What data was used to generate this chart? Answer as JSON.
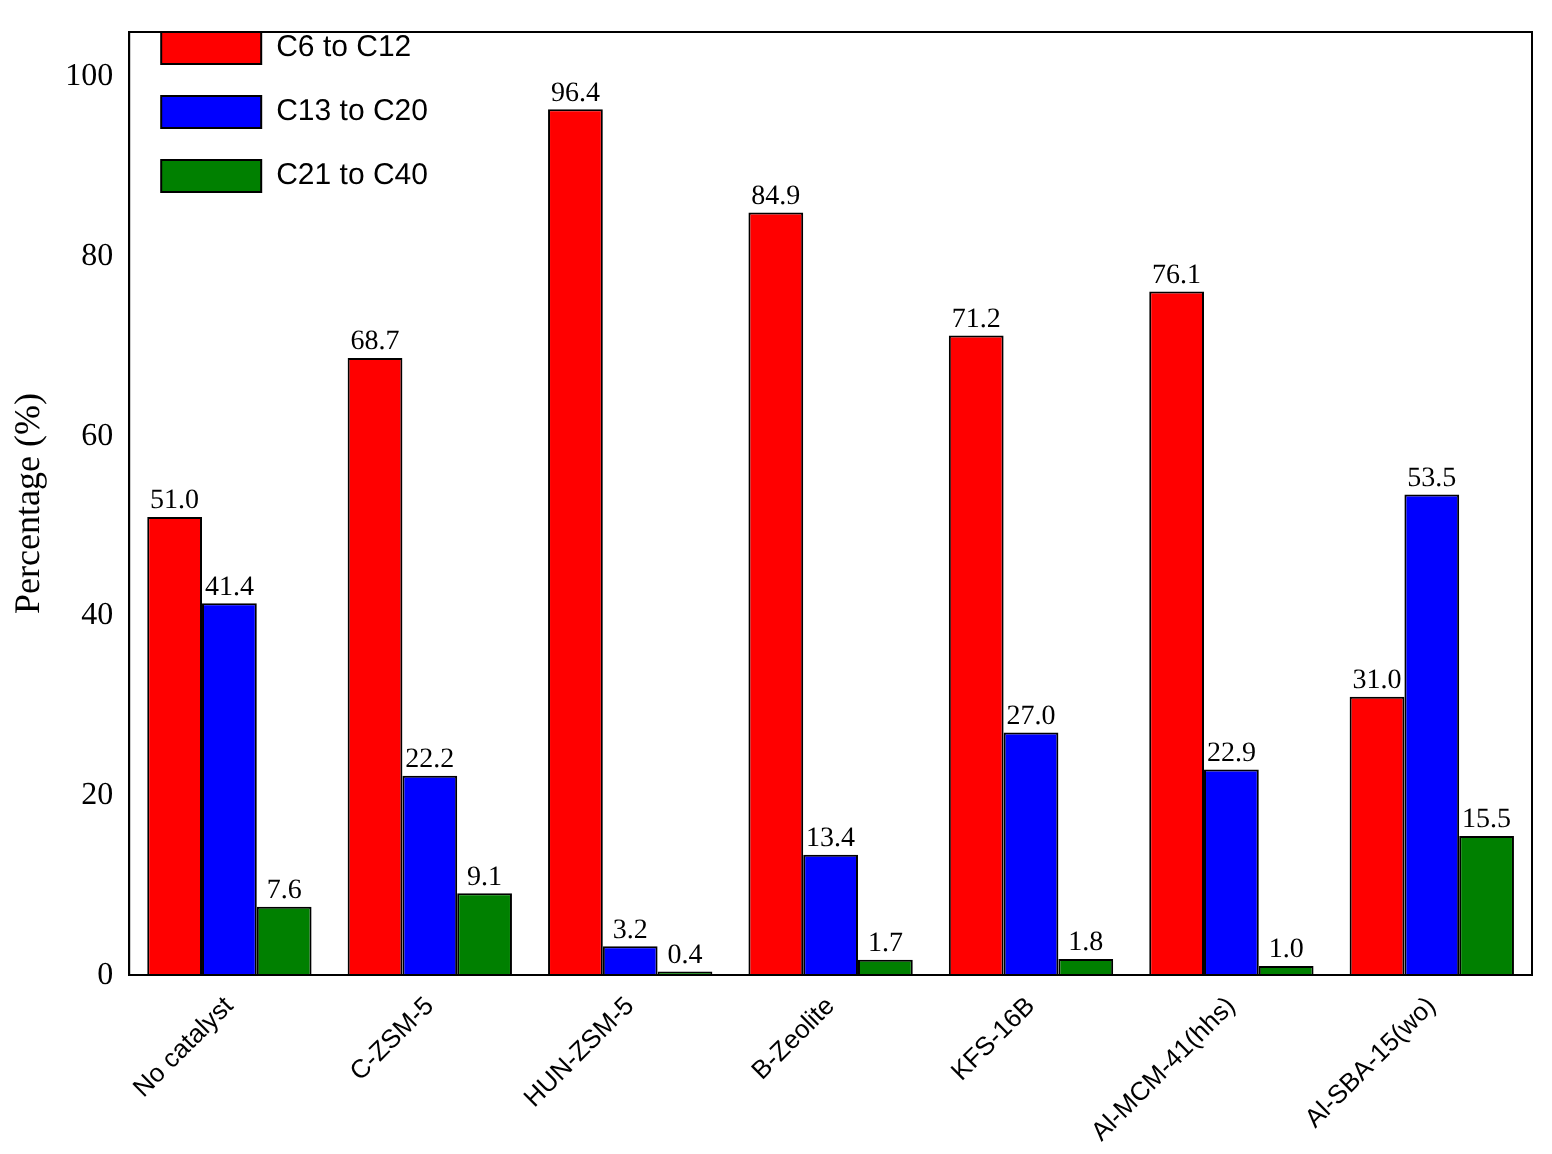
{
  "chart_data": {
    "type": "bar",
    "ylabel": "Percentage (%)",
    "categories": [
      "No catalyst",
      "C-ZSM-5",
      "HUN-ZSM-5",
      "B-Zeolite",
      "KFS-16B",
      "Al-MCM-41(hhs)",
      "Al-SBA-15(wo)"
    ],
    "series": [
      {
        "name": "C6 to C12",
        "color": "#ff0000",
        "values": [
          51.0,
          68.7,
          96.4,
          84.9,
          71.2,
          76.1,
          31.0
        ],
        "value_labels": [
          "51.0",
          "68.7",
          "96.4",
          "84.9",
          "71.2",
          "76.1",
          "31.0"
        ]
      },
      {
        "name": "C13 to C20",
        "color": "#0000ff",
        "values": [
          41.4,
          22.2,
          3.2,
          13.4,
          27.0,
          22.9,
          53.5
        ],
        "value_labels": [
          "41.4",
          "22.2",
          "3.2",
          "13.4",
          "27.0",
          "22.9",
          "53.5"
        ]
      },
      {
        "name": "C21 to C40",
        "color": "#008000",
        "values": [
          7.6,
          9.1,
          0.4,
          1.7,
          1.8,
          1.0,
          15.5
        ],
        "value_labels": [
          "7.6",
          "9.1",
          "0.4",
          "1.7",
          "1.8",
          "1.0",
          "15.5"
        ]
      }
    ],
    "ylim": [
      0,
      105
    ],
    "yticks": [
      0,
      20,
      40,
      60,
      80,
      100
    ],
    "grid": false,
    "legend": "top left"
  }
}
